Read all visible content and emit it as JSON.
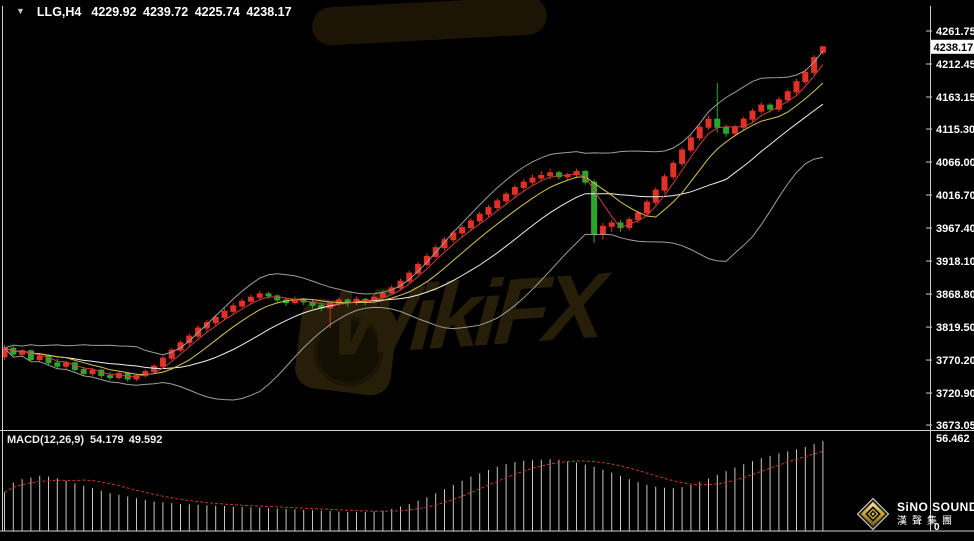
{
  "header": {
    "marker": "▼",
    "symbol": "LLG,H4",
    "quote": "4229.92 4239.72 4225.74 4238.17"
  },
  "macd_panel": {
    "label": "MACD(12,26,9)",
    "values": "54.179 49.592",
    "scale_max": "56.462",
    "scale_min": "0"
  },
  "logo": {
    "line1": "SiNO SOUND",
    "line2": "漢聲集團"
  },
  "watermark": {
    "text": "WikiFX"
  },
  "colors": {
    "background": "#000000",
    "bull": "#e23127",
    "bear": "#2ca52c",
    "band": "#9e9e9e",
    "band_middle": "#eeeeee",
    "ma_fast": "#c84040",
    "ma_medium": "#d8c452",
    "axis_line": "#cfcfcf",
    "axis_text": "#ffffff",
    "histogram": "#c6c6c6",
    "signal": "#c0392b",
    "price_box_bg": "#ffffff",
    "price_box_text": "#000000"
  },
  "chart_data": [
    {
      "type": "candlestick",
      "symbol": "LLG",
      "timeframe": "H4",
      "legend": "LLG,H4 4229.92 4239.72 4225.74 4238.17",
      "y_axis": {
        "tick_labels": [
          "4261.75",
          "4212.45",
          "4163.15",
          "4115.30",
          "4066.00",
          "4016.70",
          "3967.40",
          "3918.10",
          "3868.80",
          "3819.50",
          "3770.20",
          "3720.90",
          "3673.05"
        ],
        "current_price": "4238.17",
        "range": [
          3660,
          4270
        ]
      },
      "overlays": [
        {
          "name": "bollinger-upper",
          "window": 16,
          "sigma": 2
        },
        {
          "name": "bollinger-middle",
          "window": 16
        },
        {
          "name": "bollinger-lower",
          "window": 16,
          "sigma": -2
        },
        {
          "name": "ma-medium",
          "window": 8
        },
        {
          "name": "ma-fast",
          "window": 4
        }
      ],
      "candles": [
        [
          3775,
          3793,
          3770,
          3788
        ],
        [
          3788,
          3791,
          3776,
          3779
        ],
        [
          3779,
          3787,
          3775,
          3784
        ],
        [
          3784,
          3786,
          3768,
          3771
        ],
        [
          3771,
          3779,
          3767,
          3776
        ],
        [
          3776,
          3778,
          3763,
          3766
        ],
        [
          3766,
          3772,
          3758,
          3761
        ],
        [
          3761,
          3769,
          3757,
          3766
        ],
        [
          3766,
          3768,
          3753,
          3756
        ],
        [
          3756,
          3760,
          3746,
          3750
        ],
        [
          3750,
          3758,
          3747,
          3755
        ],
        [
          3755,
          3757,
          3743,
          3747
        ],
        [
          3747,
          3752,
          3740,
          3744
        ],
        [
          3744,
          3753,
          3741,
          3750
        ],
        [
          3750,
          3752,
          3738,
          3742
        ],
        [
          3742,
          3750,
          3739,
          3747
        ],
        [
          3747,
          3756,
          3744,
          3753
        ],
        [
          3753,
          3764,
          3750,
          3761
        ],
        [
          3761,
          3776,
          3758,
          3773
        ],
        [
          3773,
          3788,
          3770,
          3785
        ],
        [
          3785,
          3799,
          3782,
          3796
        ],
        [
          3796,
          3810,
          3790,
          3806
        ],
        [
          3806,
          3822,
          3803,
          3818
        ],
        [
          3818,
          3830,
          3812,
          3826
        ],
        [
          3826,
          3838,
          3822,
          3834
        ],
        [
          3834,
          3847,
          3830,
          3843
        ],
        [
          3843,
          3855,
          3840,
          3851
        ],
        [
          3851,
          3862,
          3848,
          3858
        ],
        [
          3858,
          3868,
          3854,
          3864
        ],
        [
          3864,
          3874,
          3860,
          3869
        ],
        [
          3869,
          3872,
          3862,
          3866
        ],
        [
          3866,
          3868,
          3856,
          3860
        ],
        [
          3860,
          3864,
          3851,
          3856
        ],
        [
          3856,
          3865,
          3853,
          3861
        ],
        [
          3861,
          3863,
          3852,
          3857
        ],
        [
          3857,
          3860,
          3847,
          3852
        ],
        [
          3852,
          3856,
          3843,
          3848
        ],
        [
          3848,
          3858,
          3818,
          3855
        ],
        [
          3855,
          3864,
          3851,
          3860
        ],
        [
          3860,
          3862,
          3850,
          3856
        ],
        [
          3856,
          3865,
          3852,
          3861
        ],
        [
          3861,
          3863,
          3852,
          3859
        ],
        [
          3859,
          3868,
          3855,
          3864
        ],
        [
          3864,
          3874,
          3861,
          3870
        ],
        [
          3870,
          3882,
          3867,
          3878
        ],
        [
          3878,
          3892,
          3875,
          3888
        ],
        [
          3888,
          3904,
          3885,
          3900
        ],
        [
          3900,
          3917,
          3897,
          3913
        ],
        [
          3913,
          3929,
          3910,
          3925
        ],
        [
          3925,
          3942,
          3922,
          3938
        ],
        [
          3938,
          3954,
          3934,
          3950
        ],
        [
          3950,
          3964,
          3946,
          3960
        ],
        [
          3960,
          3972,
          3955,
          3968
        ],
        [
          3968,
          3982,
          3964,
          3978
        ],
        [
          3978,
          3992,
          3974,
          3988
        ],
        [
          3988,
          4002,
          3984,
          3998
        ],
        [
          3998,
          4012,
          3994,
          4008
        ],
        [
          4008,
          4022,
          4004,
          4018
        ],
        [
          4018,
          4032,
          4014,
          4028
        ],
        [
          4028,
          4040,
          4024,
          4036
        ],
        [
          4036,
          4047,
          4032,
          4042
        ],
        [
          4042,
          4052,
          4037,
          4046
        ],
        [
          4046,
          4056,
          4040,
          4050
        ],
        [
          4050,
          4053,
          4040,
          4044
        ],
        [
          4044,
          4050,
          4038,
          4047
        ],
        [
          4047,
          4056,
          4042,
          4052
        ],
        [
          4052,
          4054,
          4032,
          4036
        ],
        [
          4036,
          4040,
          3945,
          3958
        ],
        [
          3958,
          3975,
          3950,
          3970
        ],
        [
          3970,
          3980,
          3962,
          3975
        ],
        [
          3975,
          3979,
          3962,
          3968
        ],
        [
          3968,
          3984,
          3964,
          3980
        ],
        [
          3980,
          3994,
          3975,
          3990
        ],
        [
          3990,
          4010,
          3986,
          4006
        ],
        [
          4006,
          4028,
          4002,
          4024
        ],
        [
          4024,
          4048,
          4020,
          4044
        ],
        [
          4044,
          4068,
          4040,
          4064
        ],
        [
          4064,
          4088,
          4060,
          4084
        ],
        [
          4084,
          4106,
          4080,
          4102
        ],
        [
          4102,
          4122,
          4098,
          4118
        ],
        [
          4118,
          4135,
          4114,
          4130
        ],
        [
          4130,
          4184,
          4110,
          4118
        ],
        [
          4118,
          4122,
          4104,
          4109
        ],
        [
          4109,
          4122,
          4105,
          4118
        ],
        [
          4118,
          4134,
          4114,
          4130
        ],
        [
          4130,
          4146,
          4126,
          4142
        ],
        [
          4142,
          4155,
          4138,
          4151
        ],
        [
          4151,
          4154,
          4140,
          4145
        ],
        [
          4145,
          4163,
          4141,
          4159
        ],
        [
          4159,
          4175,
          4155,
          4171
        ],
        [
          4171,
          4190,
          4167,
          4186
        ],
        [
          4186,
          4205,
          4182,
          4200
        ],
        [
          4200,
          4226,
          4196,
          4222
        ],
        [
          4229.92,
          4239.72,
          4225.74,
          4238.17
        ]
      ]
    },
    {
      "type": "bar",
      "title": "MACD(12,26,9)",
      "main_value": 54.179,
      "signal_value": 49.592,
      "signal_window": 9,
      "y_axis": {
        "max": 56.462,
        "min": 0
      },
      "values": [
        23,
        29,
        31,
        32,
        33,
        32.5,
        31.5,
        30,
        28.5,
        27,
        25.5,
        24,
        22.5,
        21.5,
        20.5,
        19.5,
        18.5,
        17.5,
        17,
        16.5,
        16,
        15.8,
        15.5,
        15.2,
        15,
        14.8,
        14.5,
        14.2,
        14,
        13.8,
        13.5,
        13.2,
        13,
        12.8,
        12.5,
        12.2,
        12,
        11.8,
        11.5,
        11.2,
        11,
        11.2,
        11.5,
        12,
        13,
        14.5,
        16,
        18,
        20,
        22.5,
        25,
        27.5,
        30,
        32.5,
        34.5,
        36.5,
        38.5,
        40,
        41.3,
        42.2,
        42.5,
        42.8,
        43,
        42.7,
        42,
        41,
        39.8,
        38.4,
        36.8,
        35,
        33,
        31,
        29.2,
        27.6,
        26.4,
        25.8,
        25.6,
        26.2,
        27.5,
        29.3,
        31.4,
        33.6,
        35.8,
        38,
        40,
        41.9,
        43.6,
        45.1,
        46.5,
        47.8,
        49,
        50.4,
        52.2,
        54.179
      ]
    }
  ]
}
